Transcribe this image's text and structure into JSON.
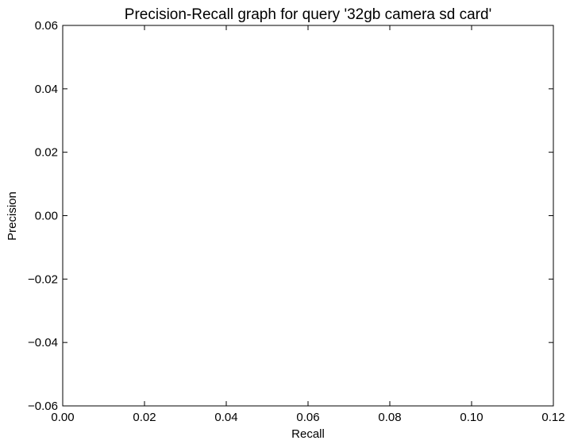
{
  "chart_data": {
    "type": "line",
    "title": "Precision-Recall graph for query '32gb camera sd card'",
    "xlabel": "Recall",
    "ylabel": "Precision",
    "xlim": [
      0.0,
      0.12
    ],
    "ylim": [
      -0.06,
      0.06
    ],
    "x_ticks": [
      0.0,
      0.02,
      0.04,
      0.06,
      0.08,
      0.1,
      0.12
    ],
    "x_tick_labels": [
      "0.00",
      "0.02",
      "0.04",
      "0.06",
      "0.08",
      "0.10",
      "0.12"
    ],
    "y_ticks": [
      0.06,
      0.04,
      0.02,
      0.0,
      -0.02,
      -0.04,
      -0.06
    ],
    "y_tick_labels": [
      "0.06",
      "0.04",
      "0.02",
      "0.00",
      "−0.02",
      "−0.04",
      "−0.06"
    ],
    "series": [
      {
        "x": [],
        "y": []
      }
    ],
    "grid": false,
    "legend": false
  }
}
